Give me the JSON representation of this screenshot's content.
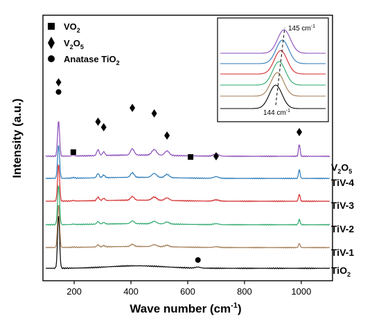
{
  "chart_data": {
    "type": "line",
    "xlabel": "Wave number (cm",
    "xlabel_sup": "-1",
    "xlabel_tail": ")",
    "ylabel": "Intensity (a.u.)",
    "xlim": [
      90,
      1110
    ],
    "x_ticks": [
      200,
      400,
      600,
      800,
      1000
    ],
    "y_ticks_shown": false,
    "legend": [
      {
        "marker": "square",
        "label": "VO",
        "sub": "2",
        "tail": ""
      },
      {
        "marker": "diamond",
        "label": "V",
        "sub": "2",
        "mid": "O",
        "sub2": "5",
        "tail": ""
      },
      {
        "marker": "circle",
        "label": "Anatase TiO",
        "sub": "2",
        "tail": ""
      }
    ],
    "series": [
      {
        "name": "TiO2",
        "name_main": "TiO",
        "name_sub": "2",
        "color": "#000000",
        "offset": 0
      },
      {
        "name": "TiV-1",
        "name_main": "TiV-1",
        "name_sub": "",
        "color": "#a07850",
        "offset": 1
      },
      {
        "name": "TiV-2",
        "name_main": "TiV-2",
        "name_sub": "",
        "color": "#2aa86a",
        "offset": 2
      },
      {
        "name": "TiV-3",
        "name_main": "TiV-3",
        "name_sub": "",
        "color": "#d42a2a",
        "offset": 3
      },
      {
        "name": "TiV-4",
        "name_main": "TiV-4",
        "name_sub": "",
        "color": "#2a7ab8",
        "offset": 4
      },
      {
        "name": "V2O5",
        "name_main": "V",
        "name_sub": "2",
        "name_mid": "O",
        "name_sub2": "5",
        "color": "#8a4ab8",
        "offset": 5
      }
    ],
    "peak_markers": [
      {
        "marker": "diamond",
        "x": 145
      },
      {
        "marker": "circle",
        "x": 145
      },
      {
        "marker": "square",
        "x": 197
      },
      {
        "marker": "diamond",
        "x": 284
      },
      {
        "marker": "diamond",
        "x": 304
      },
      {
        "marker": "diamond",
        "x": 405
      },
      {
        "marker": "diamond",
        "x": 482
      },
      {
        "marker": "diamond",
        "x": 527
      },
      {
        "marker": "square",
        "x": 610
      },
      {
        "marker": "diamond",
        "x": 700
      },
      {
        "marker": "diamond",
        "x": 993
      },
      {
        "marker": "circle",
        "x": 636
      }
    ],
    "inset": {
      "label_top": "145 cm",
      "label_top_sup": "-1",
      "label_bottom": "144 cm",
      "label_bottom_sup": "-1"
    }
  }
}
